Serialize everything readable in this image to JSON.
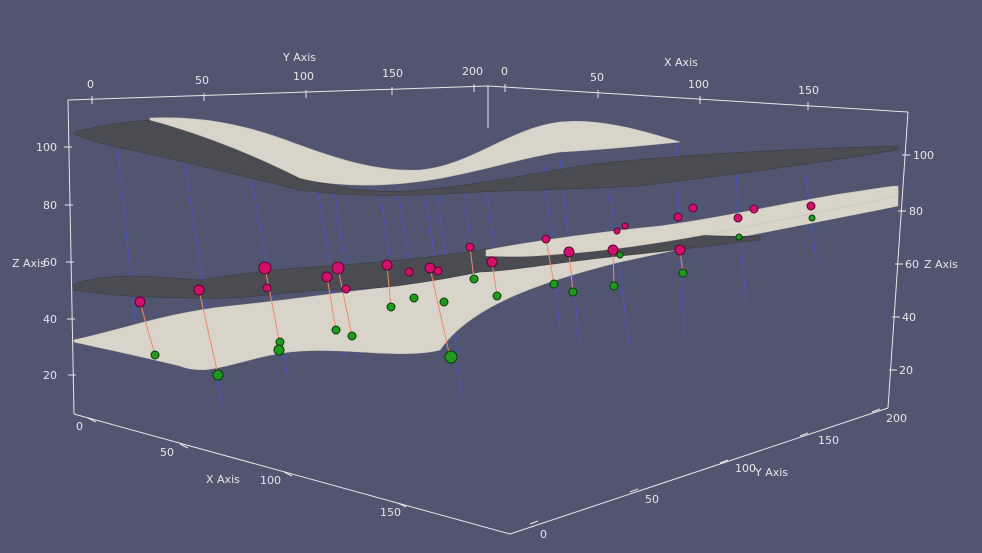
{
  "scene": {
    "background": "#525570",
    "surface_colors": {
      "light": "#d9d4c9",
      "dark": "#4b4b52"
    },
    "marker_colors": {
      "top": "#d0106a",
      "bottom": "#1f9a1f"
    },
    "well_color": "#4a52c8"
  },
  "axes": {
    "top_y": {
      "title": "Y Axis",
      "ticks": [
        "0",
        "50",
        "100",
        "150",
        "200"
      ]
    },
    "top_x": {
      "title": "X Axis",
      "ticks": [
        "0",
        "50",
        "100",
        "150"
      ]
    },
    "left_z": {
      "title": "Z Axis",
      "ticks": [
        "100",
        "80",
        "60",
        "40",
        "20"
      ]
    },
    "right_z": {
      "title": "Z Axis",
      "ticks": [
        "100",
        "80",
        "60",
        "40",
        "20"
      ]
    },
    "bottom_x": {
      "title": "X Axis",
      "ticks": [
        "0",
        "50",
        "100",
        "150"
      ]
    },
    "bottom_y": {
      "title": "Y Axis",
      "ticks": [
        "0",
        "50",
        "100",
        "150",
        "200"
      ]
    }
  }
}
